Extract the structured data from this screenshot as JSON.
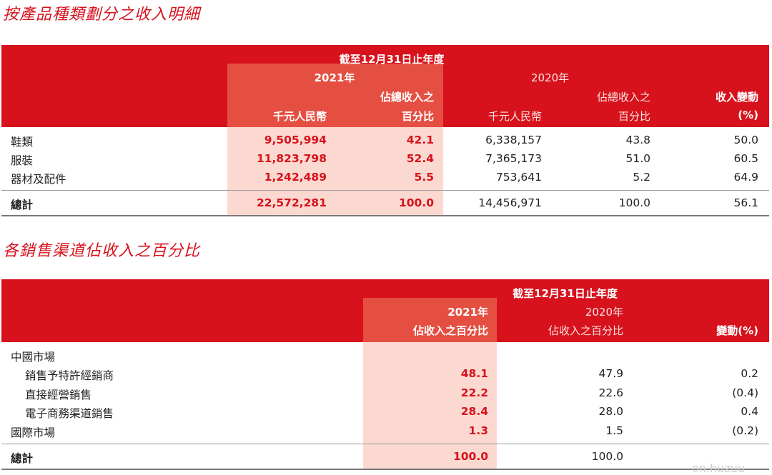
{
  "table1": {
    "title": "按產品種類劃分之收入明細",
    "header": {
      "period": "截至12月31日止年度",
      "year_current": "2021年",
      "year_prior": "2020年",
      "col_rmb": "千元人民幣",
      "col_pct_line1": "佔總收入之",
      "col_pct_line2": "百分比",
      "col_change_line1": "收入變動",
      "col_change_line2": "(%)"
    },
    "rows": [
      {
        "label": "鞋類",
        "rmb_2021": "9,505,994",
        "pct_2021": "42.1",
        "rmb_2020": "6,338,157",
        "pct_2020": "43.8",
        "change": "50.0"
      },
      {
        "label": "服裝",
        "rmb_2021": "11,823,798",
        "pct_2021": "52.4",
        "rmb_2020": "7,365,173",
        "pct_2020": "51.0",
        "change": "60.5"
      },
      {
        "label": "器材及配件",
        "rmb_2021": "1,242,489",
        "pct_2021": "5.5",
        "rmb_2020": "753,641",
        "pct_2020": "5.2",
        "change": "64.9"
      }
    ],
    "total": {
      "label": "總計",
      "rmb_2021": "22,572,281",
      "pct_2021": "100.0",
      "rmb_2020": "14,456,971",
      "pct_2020": "100.0",
      "change": "56.1"
    }
  },
  "table2": {
    "title": "各銷售渠道佔收入之百分比",
    "header": {
      "period": "截至12月31日止年度",
      "year_current": "2021年",
      "year_prior": "2020年",
      "col_pct": "佔收入之百分比",
      "col_change": "變動(%)"
    },
    "rows": [
      {
        "label": "中國市場",
        "pct_2021": "",
        "pct_2020": "",
        "change": ""
      },
      {
        "label": "銷售予特許經銷商",
        "pct_2021": "48.1",
        "pct_2020": "47.9",
        "change": "0.2"
      },
      {
        "label": "直接經營銷售",
        "pct_2021": "22.2",
        "pct_2020": "22.6",
        "change": "(0.4)"
      },
      {
        "label": "電子商務渠道銷售",
        "pct_2021": "28.4",
        "pct_2020": "28.0",
        "change": "0.4"
      },
      {
        "label": "國際市場",
        "pct_2021": "1.3",
        "pct_2020": "1.5",
        "change": "(0.2)"
      }
    ],
    "total": {
      "label": "總計",
      "pct_2021": "100.0",
      "pct_2020": "100.0",
      "change": ""
    }
  },
  "watermark": "on.huzuu"
}
